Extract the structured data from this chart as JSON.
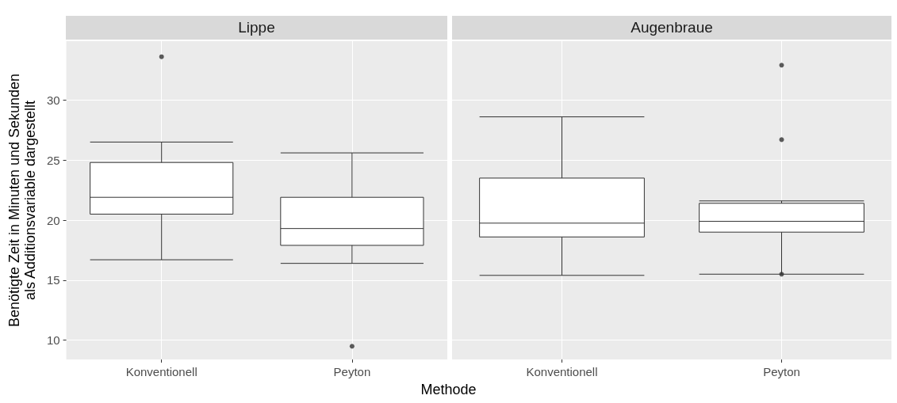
{
  "chart_data": [
    {
      "type": "box",
      "title": "Lippe",
      "xlabel": "Methode",
      "ylabel": "Benötigte Zeit in Minuten und Sekunden\nals Additionsvariable dargestellt",
      "categories": [
        "Konventionell",
        "Peyton"
      ],
      "boxes": [
        {
          "low": 16.7,
          "q1": 20.5,
          "median": 21.9,
          "q3": 24.8,
          "high": 26.5,
          "outliers": [
            33.6
          ]
        },
        {
          "low": 16.4,
          "q1": 17.9,
          "median": 19.3,
          "q3": 21.9,
          "high": 25.6,
          "outliers": [
            9.5
          ]
        }
      ],
      "color": "#ffffff",
      "ylim": [
        8.4,
        34.9
      ],
      "yticks": [
        10,
        15,
        20,
        25,
        30
      ],
      "grid": true
    },
    {
      "type": "box",
      "title": "Augenbraue",
      "categories": [
        "Konventionell",
        "Peyton"
      ],
      "boxes": [
        {
          "low": 15.4,
          "q1": 18.6,
          "median": 19.75,
          "q3": 23.5,
          "high": 28.6
        },
        {
          "low": 15.5,
          "q1": 19.0,
          "median": 19.9,
          "q3": 21.4,
          "high": 21.6,
          "outliers": [
            15.5,
            26.7,
            32.9
          ]
        }
      ],
      "color": "#ffffff",
      "ylim": [
        8.4,
        34.9
      ],
      "yticks": [
        10,
        15,
        20,
        25,
        30
      ],
      "grid": true,
      "tick_labels": "x"
    }
  ]
}
